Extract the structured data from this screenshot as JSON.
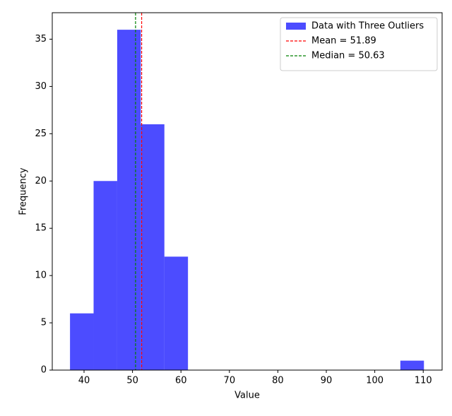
{
  "chart_data": {
    "type": "histogram",
    "x_label": "Value",
    "y_label": "Frequency",
    "bins": [
      37.1,
      41.97,
      46.84,
      51.71,
      56.58,
      61.45,
      66.32,
      71.19,
      76.06,
      80.93,
      85.8,
      90.67,
      95.54,
      100.41,
      105.28,
      110.15
    ],
    "series": [
      {
        "name": "Data with Three Outliers",
        "color": "#0000ff",
        "values": [
          6,
          20,
          36,
          26,
          12,
          0,
          0,
          0,
          0,
          0,
          0,
          0,
          0,
          0,
          1
        ]
      }
    ],
    "lines": [
      {
        "name": "Mean = 51.89",
        "value": 51.89,
        "color": "#ff0000"
      },
      {
        "name": "Median = 50.63",
        "value": 50.63,
        "color": "#008000"
      }
    ],
    "xlim": [
      33.44,
      113.9
    ],
    "ylim": [
      0,
      37.8
    ],
    "xticks": [
      40,
      50,
      60,
      70,
      80,
      90,
      100,
      110
    ],
    "yticks": [
      0,
      5,
      10,
      15,
      20,
      25,
      30,
      35
    ],
    "legend": "upper right",
    "grid": false
  }
}
